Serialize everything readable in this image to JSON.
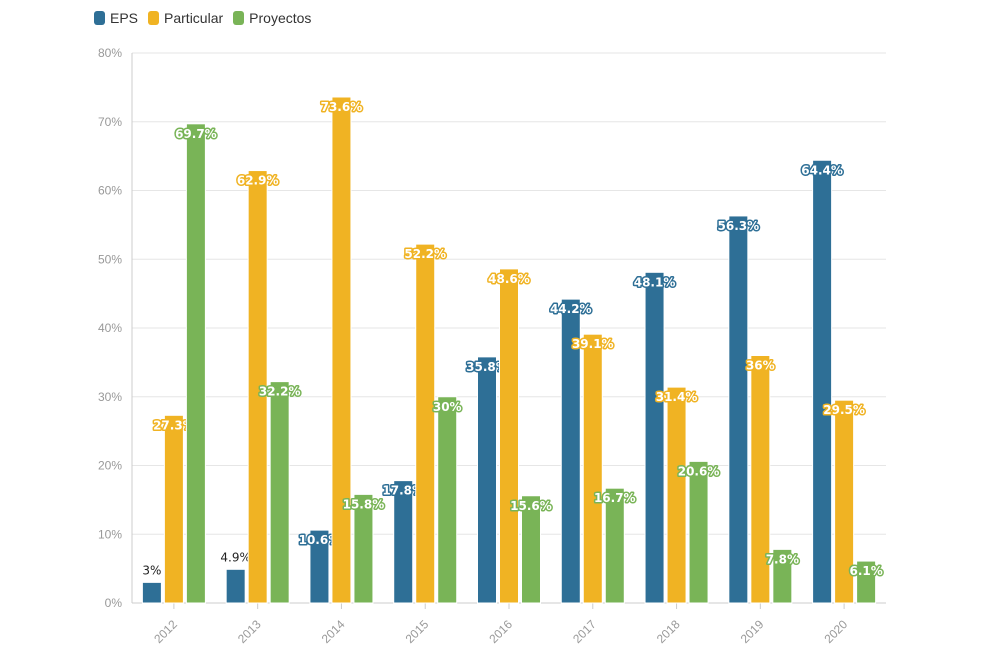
{
  "legend": [
    {
      "name": "EPS",
      "color": "#2e6f96"
    },
    {
      "name": "Particular",
      "color": "#f0b323"
    },
    {
      "name": "Proyectos",
      "color": "#79b457"
    }
  ],
  "chart_data": {
    "type": "bar",
    "categories": [
      "2012",
      "2013",
      "2014",
      "2015",
      "2016",
      "2017",
      "2018",
      "2019",
      "2020"
    ],
    "series": [
      {
        "name": "EPS",
        "color": "#2e6f96",
        "values": [
          3,
          4.9,
          10.6,
          17.8,
          35.8,
          44.2,
          48.1,
          56.3,
          64.4
        ],
        "labels": [
          "3%",
          "4.9%",
          "10.6%",
          "17.8%",
          "35.8%",
          "44.2%",
          "48.1%",
          "56.3%",
          "64.4%"
        ]
      },
      {
        "name": "Particular",
        "color": "#f0b323",
        "values": [
          27.3,
          62.9,
          73.6,
          52.2,
          48.6,
          39.1,
          31.4,
          36,
          29.5
        ],
        "labels": [
          "27.3%",
          "62.9%",
          "73.6%",
          "52.2%",
          "48.6%",
          "39.1%",
          "31.4%",
          "36%",
          "29.5%"
        ]
      },
      {
        "name": "Proyectos",
        "color": "#79b457",
        "values": [
          69.7,
          32.2,
          15.8,
          30,
          15.6,
          16.7,
          20.6,
          7.8,
          6.1
        ],
        "labels": [
          "69.7%",
          "32.2%",
          "15.8%",
          "30%",
          "15.6%",
          "16.7%",
          "20.6%",
          "7.8%",
          "6.1%"
        ]
      }
    ],
    "yticks": [
      "0%",
      "10%",
      "20%",
      "30%",
      "40%",
      "50%",
      "60%",
      "70%",
      "80%"
    ],
    "ylim": [
      0,
      80
    ],
    "grid": true,
    "legend_position": "top-left"
  }
}
